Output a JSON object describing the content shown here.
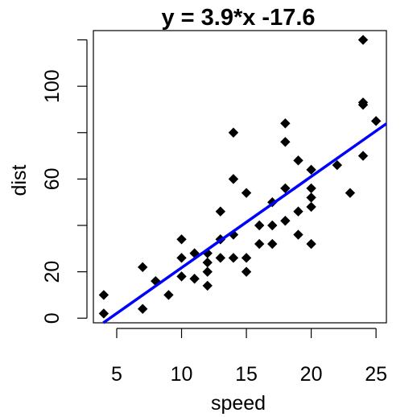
{
  "chart_data": {
    "type": "scatter",
    "title": "y = 3.9*x -17.6",
    "xlabel": "speed",
    "ylabel": "dist",
    "xlim": [
      3.2,
      25.8
    ],
    "ylim": [
      -2,
      124
    ],
    "x_ticks": [
      5,
      10,
      15,
      20,
      25
    ],
    "y_ticks": [
      0,
      20,
      60,
      100
    ],
    "grid": false,
    "legend": "none",
    "colors": {
      "points": "#000000",
      "line": "#0000ff"
    },
    "regression": {
      "slope": 3.932,
      "intercept": -17.579
    },
    "series": [
      {
        "x": [
          4,
          4,
          7,
          7,
          8,
          9,
          10,
          10,
          10,
          11,
          11,
          12,
          12,
          12,
          12,
          13,
          13,
          13,
          13,
          14,
          14,
          14,
          14,
          15,
          15,
          15,
          16,
          16,
          17,
          17,
          17,
          18,
          18,
          18,
          18,
          19,
          19,
          19,
          20,
          20,
          20,
          20,
          20,
          22,
          23,
          24,
          24,
          24,
          24,
          25
        ],
        "y": [
          2,
          10,
          4,
          22,
          16,
          10,
          18,
          26,
          34,
          17,
          28,
          14,
          20,
          24,
          28,
          26,
          34,
          34,
          46,
          26,
          36,
          60,
          80,
          20,
          26,
          54,
          32,
          40,
          32,
          40,
          50,
          42,
          56,
          76,
          84,
          36,
          46,
          68,
          32,
          48,
          52,
          56,
          64,
          66,
          54,
          70,
          92,
          93,
          120,
          85
        ]
      }
    ]
  }
}
